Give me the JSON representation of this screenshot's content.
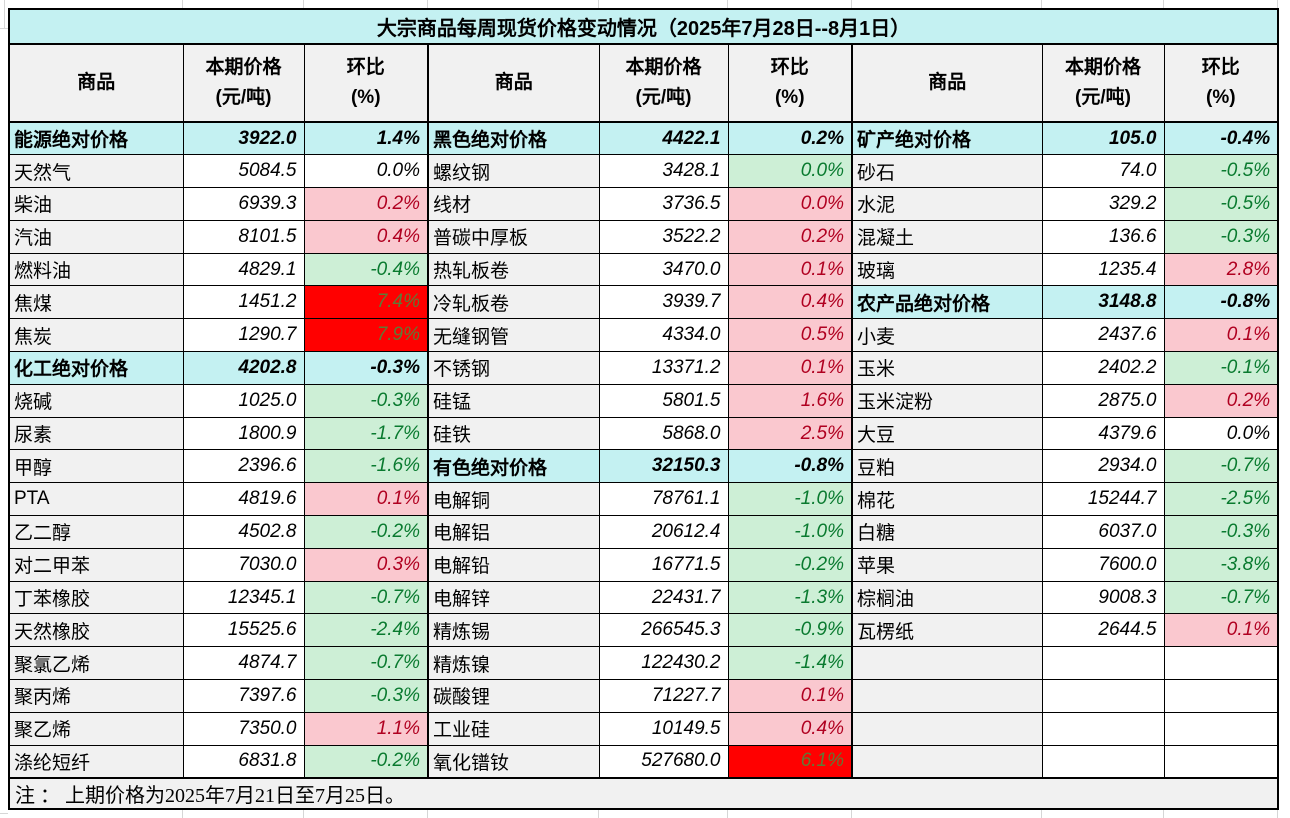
{
  "title": "大宗商品每周现货价格变动情况（2025年7月28日--8月1日）",
  "note": "注 ： 上期价格为2025年7月21日至7月25日。",
  "column_headers": {
    "commodity": "商品",
    "price_line1": "本期价格",
    "price_line2": "(元/吨)",
    "pct_line1": "环比",
    "pct_line2": "(%)"
  },
  "row_count": 20,
  "colors": {
    "title_section_bg": "#C4F1F2",
    "header_bg": "#F1F1F1",
    "commodity_cell_bg": "#F1F1F1",
    "rise_bg": "#FAC8CF",
    "rise_text": "#B00020",
    "fall_bg": "#CDEFD6",
    "fall_text": "#097A2F",
    "strong_rise_bg": "#FF0000",
    "strong_rise_text": "#5F7A36",
    "border": "#000000"
  },
  "groups": [
    {
      "id": "column-1",
      "rows": [
        {
          "name": "能源绝对价格",
          "price": "3922.0",
          "pct": "1.4%",
          "trend": "section"
        },
        {
          "name": "天然气",
          "price": "5084.5",
          "pct": "0.0%",
          "trend": "flat"
        },
        {
          "name": "柴油",
          "price": "6939.3",
          "pct": "0.2%",
          "trend": "up"
        },
        {
          "name": "汽油",
          "price": "8101.5",
          "pct": "0.4%",
          "trend": "up"
        },
        {
          "name": "燃料油",
          "price": "4829.1",
          "pct": "-0.4%",
          "trend": "down"
        },
        {
          "name": "焦煤",
          "price": "1451.2",
          "pct": "7.4%",
          "trend": "surge"
        },
        {
          "name": "焦炭",
          "price": "1290.7",
          "pct": "7.9%",
          "trend": "surge"
        },
        {
          "name": "化工绝对价格",
          "price": "4202.8",
          "pct": "-0.3%",
          "trend": "section"
        },
        {
          "name": "烧碱",
          "price": "1025.0",
          "pct": "-0.3%",
          "trend": "down"
        },
        {
          "name": "尿素",
          "price": "1800.9",
          "pct": "-1.7%",
          "trend": "down"
        },
        {
          "name": "甲醇",
          "price": "2396.6",
          "pct": "-1.6%",
          "trend": "down"
        },
        {
          "name": "PTA",
          "price": "4819.6",
          "pct": "0.1%",
          "trend": "up"
        },
        {
          "name": "乙二醇",
          "price": "4502.8",
          "pct": "-0.2%",
          "trend": "down"
        },
        {
          "name": "对二甲苯",
          "price": "7030.0",
          "pct": "0.3%",
          "trend": "up"
        },
        {
          "name": "丁苯橡胶",
          "price": "12345.1",
          "pct": "-0.7%",
          "trend": "down"
        },
        {
          "name": "天然橡胶",
          "price": "15525.6",
          "pct": "-2.4%",
          "trend": "down"
        },
        {
          "name": "聚氯乙烯",
          "price": "4874.7",
          "pct": "-0.7%",
          "trend": "down"
        },
        {
          "name": "聚丙烯",
          "price": "7397.6",
          "pct": "-0.3%",
          "trend": "down"
        },
        {
          "name": "聚乙烯",
          "price": "7350.0",
          "pct": "1.1%",
          "trend": "up"
        },
        {
          "name": "涤纶短纤",
          "price": "6831.8",
          "pct": "-0.2%",
          "trend": "down"
        }
      ]
    },
    {
      "id": "column-2",
      "rows": [
        {
          "name": "黑色绝对价格",
          "price": "4422.1",
          "pct": "0.2%",
          "trend": "section"
        },
        {
          "name": "螺纹钢",
          "price": "3428.1",
          "pct": "0.0%",
          "trend": "down"
        },
        {
          "name": "线材",
          "price": "3736.5",
          "pct": "0.0%",
          "trend": "up"
        },
        {
          "name": "普碳中厚板",
          "price": "3522.2",
          "pct": "0.2%",
          "trend": "up"
        },
        {
          "name": "热轧板卷",
          "price": "3470.0",
          "pct": "0.1%",
          "trend": "up"
        },
        {
          "name": "冷轧板卷",
          "price": "3939.7",
          "pct": "0.4%",
          "trend": "up"
        },
        {
          "name": "无缝钢管",
          "price": "4334.0",
          "pct": "0.5%",
          "trend": "up"
        },
        {
          "name": "不锈钢",
          "price": "13371.2",
          "pct": "0.1%",
          "trend": "up"
        },
        {
          "name": "硅锰",
          "price": "5801.5",
          "pct": "1.6%",
          "trend": "up"
        },
        {
          "name": "硅铁",
          "price": "5868.0",
          "pct": "2.5%",
          "trend": "up"
        },
        {
          "name": "有色绝对价格",
          "price": "32150.3",
          "pct": "-0.8%",
          "trend": "section"
        },
        {
          "name": "电解铜",
          "price": "78761.1",
          "pct": "-1.0%",
          "trend": "down"
        },
        {
          "name": "电解铝",
          "price": "20612.4",
          "pct": "-1.0%",
          "trend": "down"
        },
        {
          "name": "电解铅",
          "price": "16771.5",
          "pct": "-0.2%",
          "trend": "down"
        },
        {
          "name": "电解锌",
          "price": "22431.7",
          "pct": "-1.3%",
          "trend": "down"
        },
        {
          "name": "精炼锡",
          "price": "266545.3",
          "pct": "-0.9%",
          "trend": "down"
        },
        {
          "name": "精炼镍",
          "price": "122430.2",
          "pct": "-1.4%",
          "trend": "down"
        },
        {
          "name": "碳酸锂",
          "price": "71227.7",
          "pct": "0.1%",
          "trend": "up"
        },
        {
          "name": "工业硅",
          "price": "10149.5",
          "pct": "0.4%",
          "trend": "up"
        },
        {
          "name": "氧化镨钕",
          "price": "527680.0",
          "pct": "6.1%",
          "trend": "surge"
        }
      ]
    },
    {
      "id": "column-3",
      "rows": [
        {
          "name": "矿产绝对价格",
          "price": "105.0",
          "pct": "-0.4%",
          "trend": "section"
        },
        {
          "name": "砂石",
          "price": "74.0",
          "pct": "-0.5%",
          "trend": "down"
        },
        {
          "name": "水泥",
          "price": "329.2",
          "pct": "-0.5%",
          "trend": "down"
        },
        {
          "name": "混凝土",
          "price": "136.6",
          "pct": "-0.3%",
          "trend": "down"
        },
        {
          "name": "玻璃",
          "price": "1235.4",
          "pct": "2.8%",
          "trend": "up"
        },
        {
          "name": "农产品绝对价格",
          "price": "3148.8",
          "pct": "-0.8%",
          "trend": "section"
        },
        {
          "name": "小麦",
          "price": "2437.6",
          "pct": "0.1%",
          "trend": "up"
        },
        {
          "name": "玉米",
          "price": "2402.2",
          "pct": "-0.1%",
          "trend": "down"
        },
        {
          "name": "玉米淀粉",
          "price": "2875.0",
          "pct": "0.2%",
          "trend": "up"
        },
        {
          "name": "大豆",
          "price": "4379.6",
          "pct": "0.0%",
          "trend": "flat"
        },
        {
          "name": "豆粕",
          "price": "2934.0",
          "pct": "-0.7%",
          "trend": "down"
        },
        {
          "name": "棉花",
          "price": "15244.7",
          "pct": "-2.5%",
          "trend": "down"
        },
        {
          "name": "白糖",
          "price": "6037.0",
          "pct": "-0.3%",
          "trend": "down"
        },
        {
          "name": "苹果",
          "price": "7600.0",
          "pct": "-3.8%",
          "trend": "down"
        },
        {
          "name": "棕榈油",
          "price": "9008.3",
          "pct": "-0.7%",
          "trend": "down"
        },
        {
          "name": "瓦楞纸",
          "price": "2644.5",
          "pct": "0.1%",
          "trend": "up"
        },
        {
          "name": "",
          "price": "",
          "pct": "",
          "trend": "empty"
        },
        {
          "name": "",
          "price": "",
          "pct": "",
          "trend": "empty"
        },
        {
          "name": "",
          "price": "",
          "pct": "",
          "trend": "empty"
        },
        {
          "name": "",
          "price": "",
          "pct": "",
          "trend": "empty"
        }
      ]
    }
  ]
}
